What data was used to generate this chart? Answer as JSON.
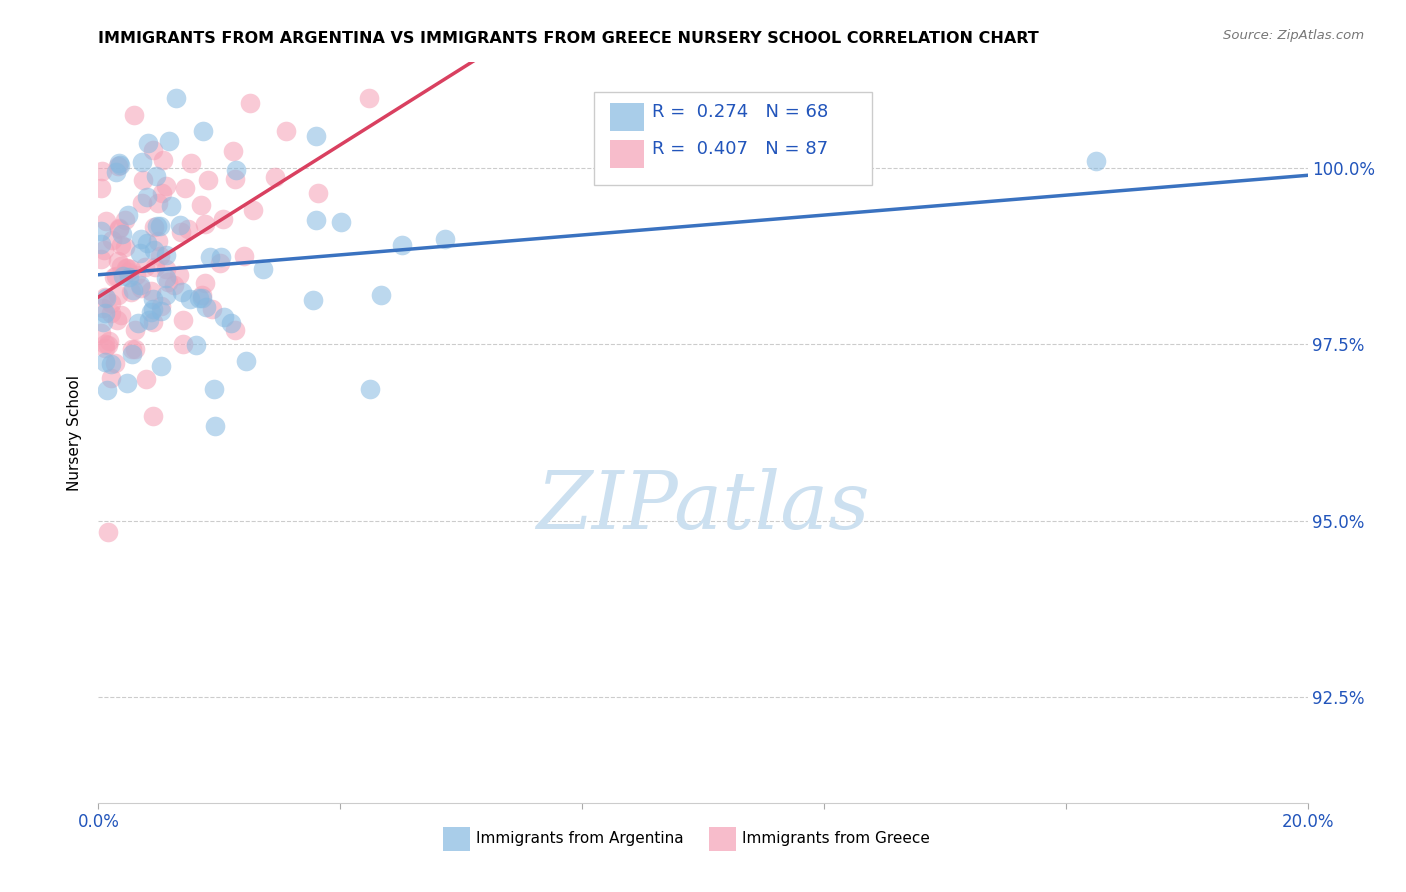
{
  "title": "IMMIGRANTS FROM ARGENTINA VS IMMIGRANTS FROM GREECE NURSERY SCHOOL CORRELATION CHART",
  "source": "Source: ZipAtlas.com",
  "ylabel": "Nursery School",
  "ytick_labels": [
    "100.0%",
    "97.5%",
    "95.0%",
    "92.5%"
  ],
  "ytick_values": [
    100.0,
    97.5,
    95.0,
    92.5
  ],
  "xlim": [
    0.0,
    20.0
  ],
  "ylim": [
    91.0,
    101.5
  ],
  "argentina_R": 0.274,
  "argentina_N": 68,
  "greece_R": 0.407,
  "greece_N": 87,
  "argentina_color": "#85b8e0",
  "greece_color": "#f5a0b5",
  "argentina_line_color": "#3a72c0",
  "greece_line_color": "#d94060",
  "legend_text_color": "#2255bb",
  "legend_argentina": "Immigrants from Argentina",
  "legend_greece": "Immigrants from Greece",
  "watermark_color": "#cce0f0"
}
